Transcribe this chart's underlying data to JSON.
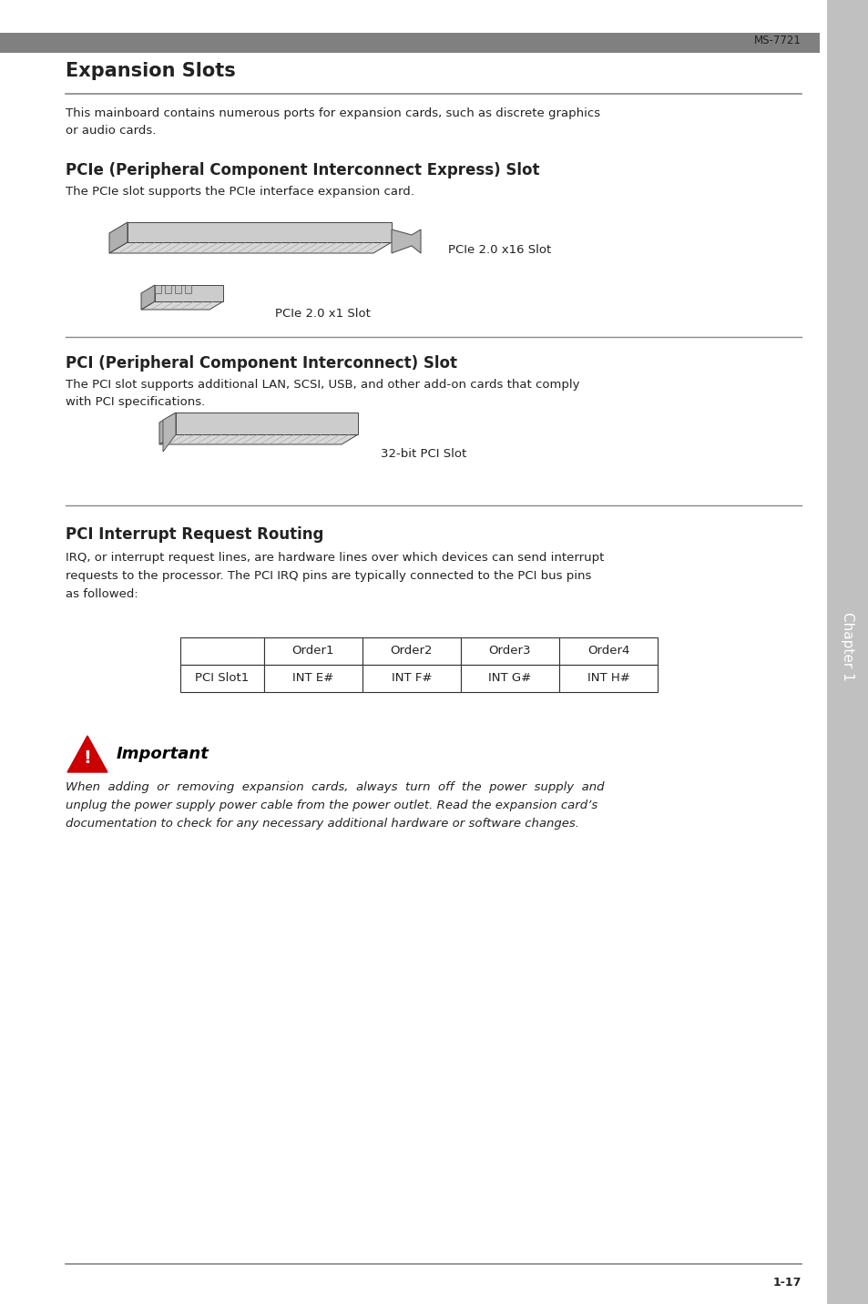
{
  "page_number": "1-17",
  "model_number": "MS-7721",
  "bg_color": "#ffffff",
  "header_bar_color": "#808080",
  "sidebar_color": "#c0c0c0",
  "main_title": "Expansion Slots",
  "section1_title": "PCIe (Peripheral Component Interconnect Express) Slot",
  "section1_body": "The PCIe slot supports the PCIe interface expansion card.",
  "pcie_label1": "PCIe 2.0 x16 Slot",
  "pcie_label2": "PCIe 2.0 x1 Slot",
  "section2_title": "PCI (Peripheral Component Interconnect) Slot",
  "section2_body": "The PCI slot supports additional LAN, SCSI, USB, and other add-on cards that comply\nwith PCI specifications.",
  "pci_label": "32-bit PCI Slot",
  "section3_title": "PCI Interrupt Request Routing",
  "section3_body": "IRQ, or interrupt request lines, are hardware lines over which devices can send interrupt\nrequests to the processor. The PCI IRQ pins are typically connected to the PCI bus pins\nas followed:",
  "table_headers": [
    "",
    "Order1",
    "Order2",
    "Order3",
    "Order4"
  ],
  "table_row": [
    "PCI Slot1",
    "INT E#",
    "INT F#",
    "INT G#",
    "INT H#"
  ],
  "important_label": "Important",
  "important_text": "When  adding  or  removing  expansion  cards,  always  turn  off  the  power  supply  and\nunplug the power supply power cable from the power outlet. Read the expansion card’s\ndocumentation to check for any necessary additional hardware or software changes.",
  "title_font_size": 15,
  "section_title_font_size": 12,
  "body_font_size": 9.5,
  "table_font_size": 9.5,
  "important_font_size": 9.5,
  "divider_color": "#888888",
  "table_border_color": "#333333",
  "important_color": "#cc0000",
  "text_color": "#222222"
}
